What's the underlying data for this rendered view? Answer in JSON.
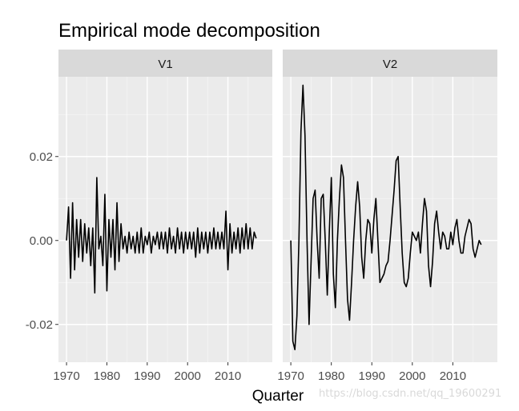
{
  "chart_data": {
    "type": "line",
    "title": "Empirical mode decomposition",
    "xlabel": "Quarter",
    "ylabel": "",
    "grid": true,
    "legend": "none",
    "xlim": [
      1968,
      2021
    ],
    "ylim": [
      -0.029,
      0.039
    ],
    "x_ticks": [
      1970,
      1980,
      1990,
      2000,
      2010
    ],
    "y_ticks": [
      -0.02,
      0.0,
      0.02
    ],
    "y_tick_labels": [
      "-0.02",
      "0.00",
      "0.02"
    ],
    "line_color": "#000000",
    "panels": [
      {
        "name": "V1",
        "x": [
          1970.0,
          1970.5,
          1971.0,
          1971.5,
          1972.0,
          1972.5,
          1973.0,
          1973.5,
          1974.0,
          1974.5,
          1975.0,
          1975.5,
          1976.0,
          1976.5,
          1977.0,
          1977.5,
          1978.0,
          1978.5,
          1979.0,
          1979.5,
          1980.0,
          1980.5,
          1981.0,
          1981.5,
          1982.0,
          1982.5,
          1983.0,
          1983.5,
          1984.0,
          1984.5,
          1985.0,
          1985.5,
          1986.0,
          1986.5,
          1987.0,
          1987.5,
          1988.0,
          1988.5,
          1989.0,
          1989.5,
          1990.0,
          1990.5,
          1991.0,
          1991.5,
          1992.0,
          1992.5,
          1993.0,
          1993.5,
          1994.0,
          1994.5,
          1995.0,
          1995.5,
          1996.0,
          1996.5,
          1997.0,
          1997.5,
          1998.0,
          1998.5,
          1999.0,
          1999.5,
          2000.0,
          2000.5,
          2001.0,
          2001.5,
          2002.0,
          2002.5,
          2003.0,
          2003.5,
          2004.0,
          2004.5,
          2005.0,
          2005.5,
          2006.0,
          2006.5,
          2007.0,
          2007.5,
          2008.0,
          2008.5,
          2009.0,
          2009.5,
          2010.0,
          2010.5,
          2011.0,
          2011.5,
          2012.0,
          2012.5,
          2013.0,
          2013.5,
          2014.0,
          2014.5,
          2015.0,
          2015.5,
          2016.0,
          2016.5,
          2017.0
        ],
        "values": [
          0.0,
          0.008,
          -0.009,
          0.009,
          -0.007,
          0.005,
          -0.004,
          0.005,
          -0.005,
          0.004,
          -0.003,
          0.003,
          -0.006,
          0.003,
          -0.0125,
          0.015,
          -0.002,
          0.001,
          -0.006,
          0.011,
          -0.012,
          0.005,
          -0.004,
          0.005,
          -0.007,
          0.009,
          -0.005,
          0.004,
          -0.002,
          0.001,
          -0.003,
          0.002,
          -0.002,
          0.001,
          -0.003,
          0.002,
          -0.003,
          0.003,
          -0.003,
          0.001,
          -0.001,
          0.002,
          -0.003,
          0.001,
          -0.001,
          0.002,
          -0.002,
          0.002,
          -0.002,
          0.002,
          -0.003,
          0.003,
          -0.002,
          0.001,
          -0.003,
          0.003,
          -0.002,
          0.002,
          -0.003,
          0.002,
          -0.002,
          0.002,
          -0.002,
          0.002,
          -0.004,
          0.003,
          -0.003,
          0.002,
          -0.002,
          0.002,
          -0.003,
          0.002,
          -0.002,
          0.003,
          -0.002,
          0.002,
          -0.002,
          0.002,
          -0.002,
          0.007,
          -0.007,
          0.004,
          -0.003,
          0.002,
          -0.002,
          0.003,
          -0.003,
          0.003,
          -0.002,
          0.004,
          -0.002,
          0.003,
          -0.002,
          0.002,
          0.0005
        ]
      },
      {
        "name": "V2",
        "x": [
          1970.0,
          1970.5,
          1971.0,
          1971.5,
          1972.0,
          1972.5,
          1973.0,
          1973.5,
          1974.0,
          1974.5,
          1975.0,
          1975.5,
          1976.0,
          1976.5,
          1977.0,
          1977.5,
          1978.0,
          1978.5,
          1979.0,
          1979.5,
          1980.0,
          1980.5,
          1981.0,
          1981.5,
          1982.0,
          1982.5,
          1983.0,
          1983.5,
          1984.0,
          1984.5,
          1985.0,
          1985.5,
          1986.0,
          1986.5,
          1987.0,
          1987.5,
          1988.0,
          1988.5,
          1989.0,
          1989.5,
          1990.0,
          1990.5,
          1991.0,
          1991.5,
          1992.0,
          1992.5,
          1993.0,
          1993.5,
          1994.0,
          1994.5,
          1995.0,
          1995.5,
          1996.0,
          1996.5,
          1997.0,
          1997.5,
          1998.0,
          1998.5,
          1999.0,
          1999.5,
          2000.0,
          2000.5,
          2001.0,
          2001.5,
          2002.0,
          2002.5,
          2003.0,
          2003.5,
          2004.0,
          2004.5,
          2005.0,
          2005.5,
          2006.0,
          2006.5,
          2007.0,
          2007.5,
          2008.0,
          2008.5,
          2009.0,
          2009.5,
          2010.0,
          2010.5,
          2011.0,
          2011.5,
          2012.0,
          2012.5,
          2013.0,
          2013.5,
          2014.0,
          2014.5,
          2015.0,
          2015.5,
          2016.0,
          2016.5,
          2017.0
        ],
        "values": [
          0.0,
          -0.024,
          -0.026,
          -0.018,
          0.0,
          0.026,
          0.037,
          0.025,
          0.0,
          -0.02,
          -0.005,
          0.01,
          0.012,
          0.0,
          -0.009,
          0.01,
          0.011,
          0.0,
          -0.013,
          0.002,
          0.015,
          -0.008,
          -0.016,
          0.0,
          0.01,
          0.018,
          0.015,
          0.0,
          -0.014,
          -0.019,
          -0.01,
          0.0,
          0.008,
          0.014,
          0.008,
          -0.004,
          -0.009,
          0.0,
          0.005,
          0.004,
          -0.003,
          0.005,
          0.01,
          0.0,
          -0.01,
          -0.009,
          -0.008,
          -0.006,
          -0.005,
          0.0,
          0.006,
          0.012,
          0.019,
          0.02,
          0.008,
          -0.003,
          -0.01,
          -0.011,
          -0.009,
          -0.003,
          0.002,
          0.001,
          0.0,
          0.002,
          -0.003,
          0.004,
          0.01,
          0.007,
          -0.006,
          -0.011,
          -0.005,
          0.004,
          0.007,
          0.002,
          -0.002,
          0.002,
          0.001,
          -0.002,
          -0.002,
          0.002,
          -0.001,
          0.003,
          0.005,
          0.0,
          -0.003,
          -0.003,
          0.001,
          0.003,
          0.005,
          0.004,
          -0.002,
          -0.004,
          -0.002,
          0.0,
          -0.001
        ]
      }
    ]
  },
  "watermark": "https://blog.csdn.net/qq_19600291"
}
